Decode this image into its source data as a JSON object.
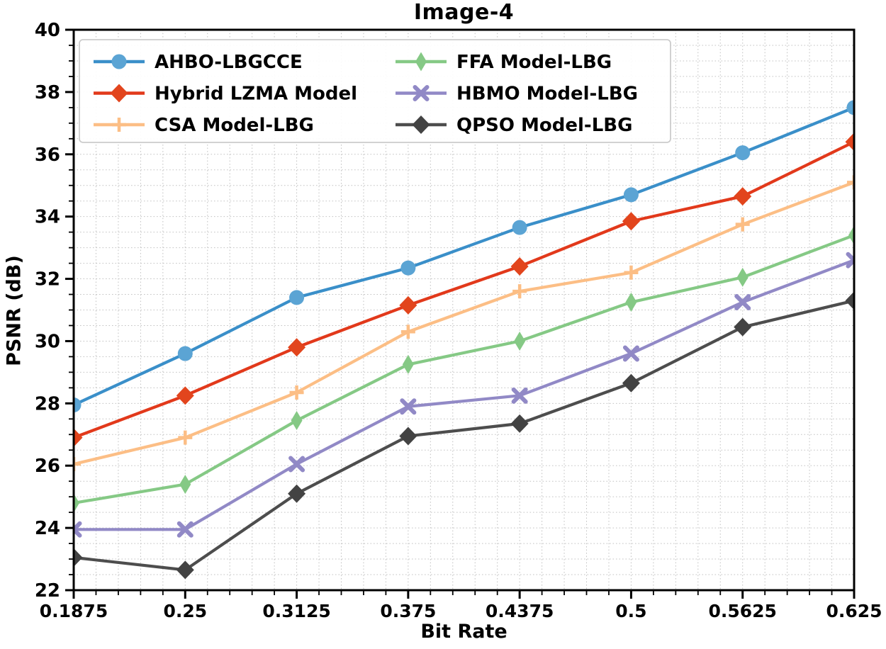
{
  "chart_data": {
    "type": "line",
    "title": "Image-4",
    "xlabel": "Bit Rate",
    "ylabel": "PSNR (dB)",
    "x": [
      0.1875,
      0.25,
      0.3125,
      0.375,
      0.4375,
      0.5,
      0.5625,
      0.625
    ],
    "xtick_labels": [
      "0.1875",
      "0.25",
      "0.3125",
      "0.375",
      "0.4375",
      "0.5",
      "0.5625",
      "0.625"
    ],
    "ytick_labels": [
      "22",
      "24",
      "26",
      "28",
      "30",
      "32",
      "34",
      "36",
      "38",
      "40"
    ],
    "xlim": [
      0.1875,
      0.625
    ],
    "ylim": [
      22,
      40
    ],
    "x_minor_step": 0.0125,
    "y_minor_step": 0.5,
    "grid": "dotted, major and minor, both axes",
    "legend_position": "upper left, 2 columns",
    "colors": {
      "grid": "#c3c3c3",
      "axis": "#000000",
      "legend_border": "#cccccc",
      "legend_bg": "#ffffff"
    },
    "series": [
      {
        "name": "AHBO-LBGCCE",
        "color": "#3a8fc9",
        "marker_color": "#5ba4d4",
        "marker": "circle",
        "values": [
          27.95,
          29.6,
          31.4,
          32.35,
          33.65,
          34.7,
          36.05,
          37.5
        ]
      },
      {
        "name": "Hybrid LZMA Model",
        "color": "#e2391b",
        "marker_color": "#e2451d",
        "marker": "diamond",
        "values": [
          26.9,
          28.25,
          29.8,
          31.15,
          32.4,
          33.85,
          34.65,
          36.4
        ]
      },
      {
        "name": "CSA Model-LBG",
        "color": "#fcbe85",
        "marker_color": "#fcbe85",
        "marker": "plus",
        "values": [
          26.05,
          26.9,
          28.35,
          30.3,
          31.6,
          32.2,
          33.75,
          35.1
        ]
      },
      {
        "name": "FFA Model-LBG",
        "color": "#85c985",
        "marker_color": "#85c985",
        "marker": "thin-diamond",
        "values": [
          24.8,
          25.4,
          27.45,
          29.25,
          30.0,
          31.25,
          32.05,
          33.4
        ]
      },
      {
        "name": "HBMO Model-LBG",
        "color": "#9189c6",
        "marker_color": "#9189c6",
        "marker": "x",
        "values": [
          23.95,
          23.95,
          26.05,
          27.9,
          28.25,
          29.6,
          31.25,
          32.6
        ]
      },
      {
        "name": "QPSO Model-LBG",
        "color": "#4d4d4d",
        "marker_color": "#434343",
        "marker": "diamond",
        "values": [
          23.05,
          22.65,
          25.1,
          26.95,
          27.35,
          28.65,
          30.45,
          31.3
        ]
      }
    ]
  }
}
